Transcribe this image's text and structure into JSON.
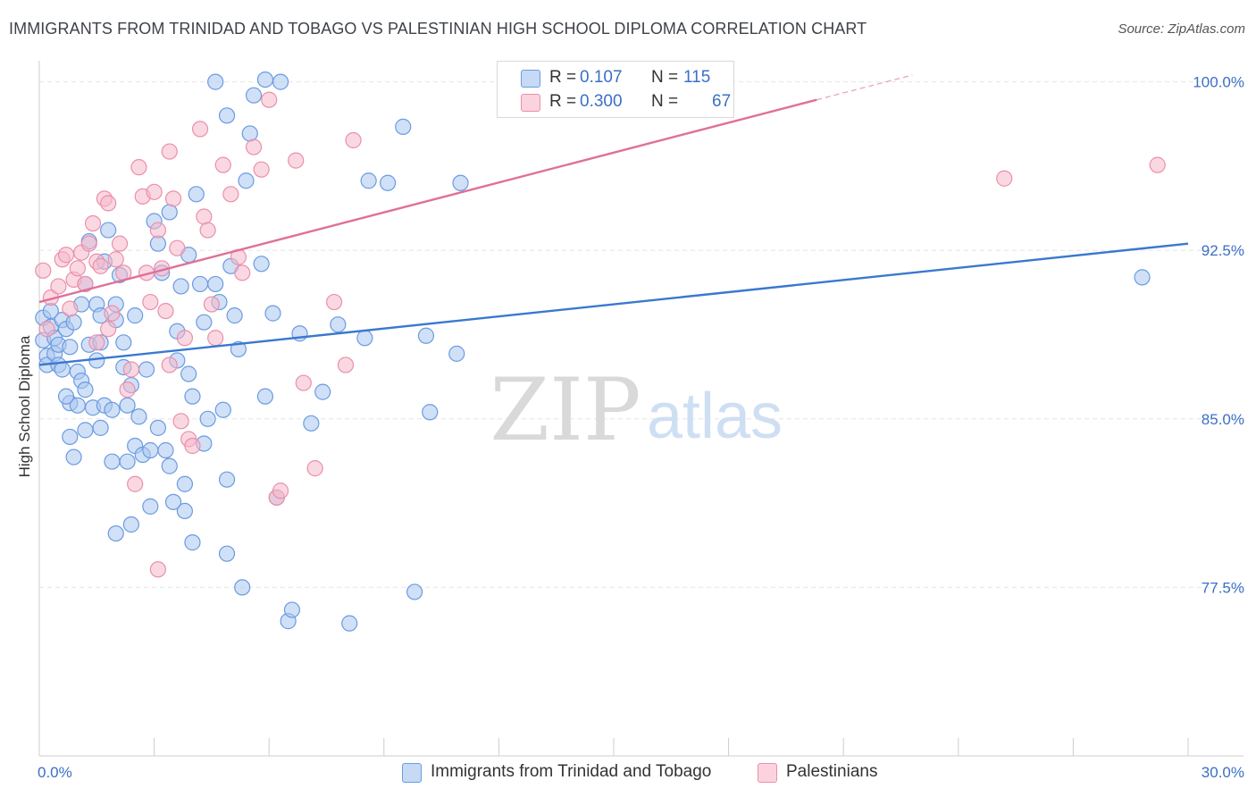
{
  "header": {
    "title": "IMMIGRANTS FROM TRINIDAD AND TOBAGO VS PALESTINIAN HIGH SCHOOL DIPLOMA CORRELATION CHART",
    "source": "Source: ZipAtlas.com"
  },
  "watermark": {
    "zip": "ZIP",
    "atlas": "atlas"
  },
  "legend": {
    "r_label": "R =",
    "n_label": "N =",
    "rows": [
      {
        "r": "0.107",
        "n": "115"
      },
      {
        "r": "0.300",
        "n": "67"
      }
    ]
  },
  "colors": {
    "blue_fill": "#a9c7f0",
    "blue_stroke": "#6a9be0",
    "blue_line": "#3a78cf",
    "pink_fill": "#f6b8cb",
    "pink_stroke": "#eb8fab",
    "pink_line": "#e07098",
    "axis_text": "#3b6fc6",
    "grid": "#e6e6e6"
  },
  "chart_data": {
    "type": "scatter",
    "title": "IMMIGRANTS FROM TRINIDAD AND TOBAGO VS PALESTINIAN HIGH SCHOOL DIPLOMA CORRELATION CHART",
    "xlabel": "",
    "ylabel": "High School Diploma",
    "xlim": [
      0,
      30
    ],
    "ylim": [
      70,
      100.7
    ],
    "x_tick_labels": [
      "0.0%",
      "30.0%"
    ],
    "y_ticks": [
      77.5,
      85.0,
      92.5,
      100.0
    ],
    "y_tick_labels": [
      "77.5%",
      "85.0%",
      "92.5%",
      "100.0%"
    ],
    "grid": true,
    "legend_placement": "bottom",
    "series": [
      {
        "name": "Immigrants from Trinidad and Tobago",
        "R": 0.107,
        "N": 115,
        "trend": {
          "x": [
            0,
            30
          ],
          "y": [
            87.4,
            92.8
          ]
        },
        "points": [
          [
            0.1,
            89.5
          ],
          [
            0.1,
            88.5
          ],
          [
            0.2,
            87.8
          ],
          [
            0.2,
            87.4
          ],
          [
            0.3,
            89.8
          ],
          [
            0.3,
            89.1
          ],
          [
            0.4,
            88.6
          ],
          [
            0.4,
            87.9
          ],
          [
            0.5,
            88.3
          ],
          [
            0.5,
            87.4
          ],
          [
            0.6,
            89.4
          ],
          [
            0.6,
            87.2
          ],
          [
            0.7,
            89.0
          ],
          [
            0.8,
            88.2
          ],
          [
            0.8,
            85.7
          ],
          [
            0.9,
            89.3
          ],
          [
            0.8,
            84.2
          ],
          [
            0.9,
            83.3
          ],
          [
            1.0,
            85.6
          ],
          [
            1.0,
            87.1
          ],
          [
            1.1,
            86.7
          ],
          [
            1.1,
            90.1
          ],
          [
            1.2,
            86.3
          ],
          [
            1.2,
            84.5
          ],
          [
            1.3,
            88.3
          ],
          [
            1.3,
            92.9
          ],
          [
            1.4,
            85.5
          ],
          [
            1.5,
            87.6
          ],
          [
            1.6,
            88.4
          ],
          [
            1.6,
            84.6
          ],
          [
            1.7,
            85.6
          ],
          [
            1.5,
            90.1
          ],
          [
            1.6,
            89.6
          ],
          [
            1.7,
            92.0
          ],
          [
            1.8,
            93.4
          ],
          [
            1.9,
            85.4
          ],
          [
            1.9,
            83.1
          ],
          [
            2.0,
            90.1
          ],
          [
            2.0,
            89.4
          ],
          [
            2.0,
            79.9
          ],
          [
            2.1,
            91.4
          ],
          [
            2.2,
            88.4
          ],
          [
            2.2,
            87.3
          ],
          [
            2.3,
            83.1
          ],
          [
            2.3,
            85.6
          ],
          [
            2.4,
            80.3
          ],
          [
            2.5,
            83.8
          ],
          [
            2.5,
            89.6
          ],
          [
            2.6,
            85.1
          ],
          [
            2.7,
            83.4
          ],
          [
            2.8,
            87.2
          ],
          [
            2.9,
            83.6
          ],
          [
            2.9,
            81.1
          ],
          [
            3.0,
            93.8
          ],
          [
            3.1,
            92.8
          ],
          [
            3.2,
            91.5
          ],
          [
            3.3,
            83.6
          ],
          [
            3.4,
            82.9
          ],
          [
            3.5,
            81.3
          ],
          [
            3.6,
            88.9
          ],
          [
            3.6,
            87.6
          ],
          [
            3.7,
            90.9
          ],
          [
            3.8,
            82.1
          ],
          [
            3.8,
            80.9
          ],
          [
            3.9,
            87.0
          ],
          [
            4.0,
            86.0
          ],
          [
            4.0,
            79.5
          ],
          [
            4.1,
            95.0
          ],
          [
            4.2,
            91.0
          ],
          [
            4.3,
            83.9
          ],
          [
            4.3,
            89.3
          ],
          [
            4.4,
            85.0
          ],
          [
            4.6,
            91.0
          ],
          [
            4.7,
            90.2
          ],
          [
            4.8,
            85.4
          ],
          [
            4.9,
            82.3
          ],
          [
            4.9,
            79.0
          ],
          [
            5.0,
            91.8
          ],
          [
            5.1,
            89.6
          ],
          [
            5.2,
            88.1
          ],
          [
            5.3,
            77.5
          ],
          [
            5.4,
            95.6
          ],
          [
            5.5,
            97.7
          ],
          [
            5.6,
            99.4
          ],
          [
            5.8,
            91.9
          ],
          [
            5.9,
            100.1
          ],
          [
            5.9,
            86.0
          ],
          [
            6.1,
            89.7
          ],
          [
            6.2,
            81.5
          ],
          [
            6.5,
            76.0
          ],
          [
            6.6,
            76.5
          ],
          [
            6.8,
            88.8
          ],
          [
            7.1,
            84.8
          ],
          [
            7.4,
            86.2
          ],
          [
            7.8,
            89.2
          ],
          [
            8.1,
            75.9
          ],
          [
            8.5,
            88.6
          ],
          [
            8.6,
            95.6
          ],
          [
            9.1,
            95.5
          ],
          [
            9.5,
            98.0
          ],
          [
            9.8,
            77.3
          ],
          [
            10.1,
            88.7
          ],
          [
            10.2,
            85.3
          ],
          [
            10.9,
            87.9
          ],
          [
            11.0,
            95.5
          ],
          [
            6.3,
            100.0
          ],
          [
            4.6,
            100.0
          ],
          [
            4.9,
            98.5
          ],
          [
            3.9,
            92.3
          ],
          [
            3.4,
            94.2
          ],
          [
            1.2,
            91.0
          ],
          [
            2.4,
            86.5
          ],
          [
            3.1,
            84.6
          ],
          [
            0.7,
            86.0
          ],
          [
            28.8,
            91.3
          ]
        ]
      },
      {
        "name": "Palestinians",
        "R": 0.3,
        "N": 67,
        "trend": {
          "x": [
            0,
            20.3
          ],
          "y": [
            90.2,
            99.2
          ]
        },
        "trend_dashed": {
          "x": [
            20.3,
            22.8
          ],
          "y": [
            99.2,
            100.3
          ]
        },
        "points": [
          [
            0.1,
            91.6
          ],
          [
            0.2,
            89.0
          ],
          [
            0.3,
            90.4
          ],
          [
            0.5,
            90.9
          ],
          [
            0.6,
            92.1
          ],
          [
            0.7,
            92.3
          ],
          [
            0.8,
            89.9
          ],
          [
            0.9,
            91.2
          ],
          [
            1.0,
            91.7
          ],
          [
            1.1,
            92.4
          ],
          [
            1.2,
            91.0
          ],
          [
            1.3,
            92.8
          ],
          [
            1.4,
            93.7
          ],
          [
            1.5,
            92.0
          ],
          [
            1.5,
            88.4
          ],
          [
            1.6,
            91.8
          ],
          [
            1.7,
            94.8
          ],
          [
            1.8,
            94.6
          ],
          [
            1.9,
            89.7
          ],
          [
            2.0,
            92.1
          ],
          [
            2.1,
            92.8
          ],
          [
            2.2,
            91.5
          ],
          [
            2.3,
            86.3
          ],
          [
            2.4,
            87.2
          ],
          [
            2.5,
            82.1
          ],
          [
            2.6,
            96.2
          ],
          [
            2.7,
            94.9
          ],
          [
            2.8,
            91.5
          ],
          [
            2.9,
            90.2
          ],
          [
            3.0,
            95.1
          ],
          [
            3.1,
            93.4
          ],
          [
            3.2,
            91.7
          ],
          [
            3.3,
            89.8
          ],
          [
            3.4,
            96.9
          ],
          [
            3.5,
            94.8
          ],
          [
            3.6,
            92.6
          ],
          [
            3.7,
            84.9
          ],
          [
            3.8,
            88.6
          ],
          [
            3.9,
            84.1
          ],
          [
            4.0,
            83.8
          ],
          [
            4.2,
            97.9
          ],
          [
            4.3,
            94.0
          ],
          [
            4.4,
            93.4
          ],
          [
            4.5,
            90.1
          ],
          [
            4.6,
            88.6
          ],
          [
            4.8,
            96.3
          ],
          [
            5.0,
            95.0
          ],
          [
            5.2,
            92.2
          ],
          [
            5.3,
            91.5
          ],
          [
            5.6,
            97.1
          ],
          [
            5.8,
            96.1
          ],
          [
            6.0,
            99.2
          ],
          [
            6.2,
            81.5
          ],
          [
            6.3,
            81.8
          ],
          [
            6.7,
            96.5
          ],
          [
            6.9,
            86.6
          ],
          [
            7.2,
            82.8
          ],
          [
            7.7,
            90.2
          ],
          [
            8.0,
            87.4
          ],
          [
            8.2,
            97.4
          ],
          [
            3.1,
            78.3
          ],
          [
            1.8,
            89.0
          ],
          [
            3.4,
            87.4
          ],
          [
            12.4,
            100.1
          ],
          [
            17.5,
            100.0
          ],
          [
            25.2,
            95.7
          ],
          [
            29.2,
            96.3
          ]
        ]
      }
    ]
  },
  "bottom_legend": [
    {
      "label": "Immigrants from Trinidad and Tobago"
    },
    {
      "label": "Palestinians"
    }
  ]
}
